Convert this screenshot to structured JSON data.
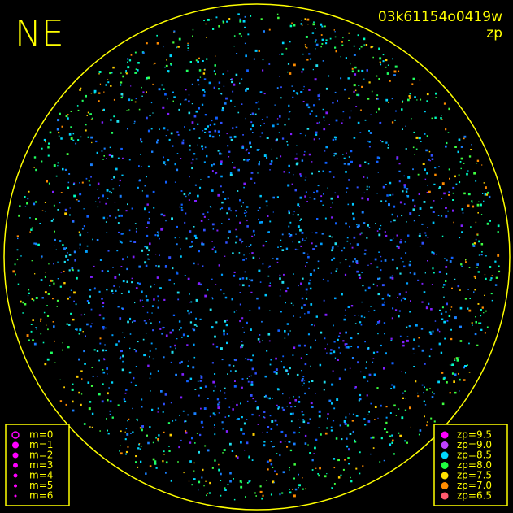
{
  "header": {
    "title": "NE",
    "frame_id": "03k61154o0419w",
    "mode": "zp"
  },
  "magnitude_legend": {
    "items": [
      {
        "label": "m=0"
      },
      {
        "label": "m=1"
      },
      {
        "label": "m=2"
      },
      {
        "label": "m=3"
      },
      {
        "label": "m=4"
      },
      {
        "label": "m=5"
      },
      {
        "label": "m=6"
      }
    ]
  },
  "zp_legend": {
    "items": [
      {
        "label": "zp=9.5",
        "color": "#ff00ff"
      },
      {
        "label": "zp=9.0",
        "color": "#c040ff"
      },
      {
        "label": "zp=8.5",
        "color": "#00d8ff"
      },
      {
        "label": "zp=8.0",
        "color": "#20ff40"
      },
      {
        "label": "zp=7.5",
        "color": "#ffe000"
      },
      {
        "label": "zp=7.0",
        "color": "#ff8c00"
      },
      {
        "label": "zp=6.5",
        "color": "#ff5a6e"
      }
    ]
  }
}
